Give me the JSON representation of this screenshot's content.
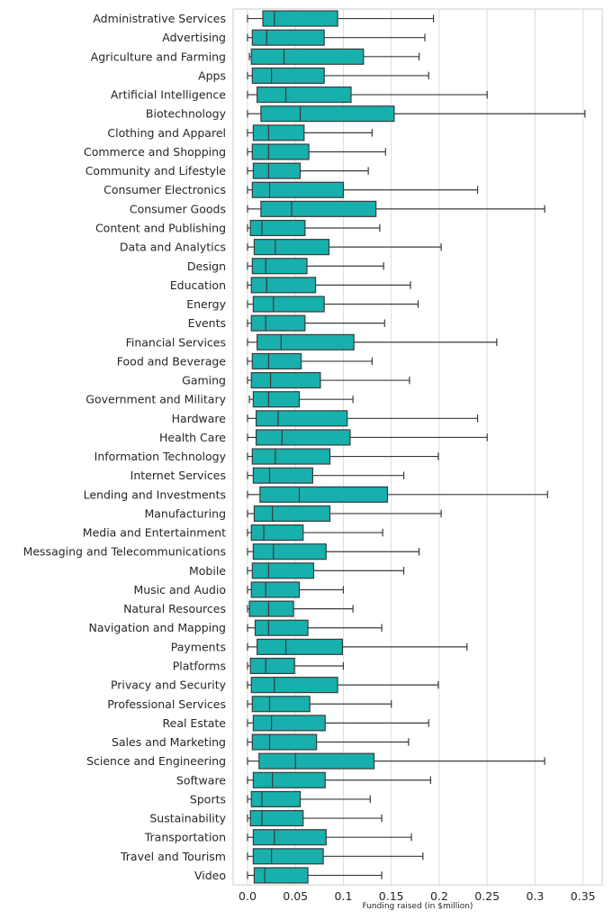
{
  "chart_data": {
    "type": "boxplot",
    "orientation": "horizontal",
    "xlabel": "Funding raised (in $million)",
    "xlim": [
      -0.015,
      0.37
    ],
    "xticks": [
      0.0,
      0.05,
      0.1,
      0.15,
      0.2,
      0.25,
      0.3,
      0.35
    ],
    "xtick_labels": [
      "0.0",
      "0.05",
      "0.1",
      "0.15",
      "0.2",
      "0.25",
      "0.3",
      "0.35"
    ],
    "grid": "vertical",
    "box_color": "#17b0ad",
    "edge_color": "#3a3a3a",
    "categories": [
      {
        "name": "Administrative Services",
        "whislo": 0.0,
        "q1": 0.016,
        "med": 0.028,
        "q3": 0.094,
        "whishi": 0.194
      },
      {
        "name": "Advertising",
        "whislo": 0.0,
        "q1": 0.005,
        "med": 0.02,
        "q3": 0.08,
        "whishi": 0.185
      },
      {
        "name": "Agriculture and Farming",
        "whislo": 0.002,
        "q1": 0.004,
        "med": 0.038,
        "q3": 0.121,
        "whishi": 0.179
      },
      {
        "name": "Apps",
        "whislo": 0.0,
        "q1": 0.005,
        "med": 0.025,
        "q3": 0.08,
        "whishi": 0.189
      },
      {
        "name": "Artificial Intelligence",
        "whislo": 0.0,
        "q1": 0.01,
        "med": 0.04,
        "q3": 0.108,
        "whishi": 0.25
      },
      {
        "name": "Biotechnology",
        "whislo": 0.0,
        "q1": 0.014,
        "med": 0.055,
        "q3": 0.153,
        "whishi": 0.352
      },
      {
        "name": "Clothing and Apparel",
        "whislo": 0.0,
        "q1": 0.006,
        "med": 0.022,
        "q3": 0.059,
        "whishi": 0.13
      },
      {
        "name": "Commerce and Shopping",
        "whislo": 0.0,
        "q1": 0.005,
        "med": 0.022,
        "q3": 0.064,
        "whishi": 0.144
      },
      {
        "name": "Community and Lifestyle",
        "whislo": 0.0,
        "q1": 0.006,
        "med": 0.022,
        "q3": 0.055,
        "whishi": 0.126
      },
      {
        "name": "Consumer Electronics",
        "whislo": 0.0,
        "q1": 0.005,
        "med": 0.023,
        "q3": 0.1,
        "whishi": 0.24
      },
      {
        "name": "Consumer Goods",
        "whislo": 0.0,
        "q1": 0.014,
        "med": 0.046,
        "q3": 0.134,
        "whishi": 0.31
      },
      {
        "name": "Content and Publishing",
        "whislo": 0.0,
        "q1": 0.003,
        "med": 0.015,
        "q3": 0.06,
        "whishi": 0.138
      },
      {
        "name": "Data and Analytics",
        "whislo": 0.0,
        "q1": 0.007,
        "med": 0.029,
        "q3": 0.085,
        "whishi": 0.202
      },
      {
        "name": "Design",
        "whislo": 0.0,
        "q1": 0.005,
        "med": 0.019,
        "q3": 0.062,
        "whishi": 0.142
      },
      {
        "name": "Education",
        "whislo": 0.0,
        "q1": 0.004,
        "med": 0.02,
        "q3": 0.071,
        "whishi": 0.17
      },
      {
        "name": "Energy",
        "whislo": 0.0,
        "q1": 0.006,
        "med": 0.027,
        "q3": 0.08,
        "whishi": 0.178
      },
      {
        "name": "Events",
        "whislo": 0.0,
        "q1": 0.004,
        "med": 0.019,
        "q3": 0.06,
        "whishi": 0.143
      },
      {
        "name": "Financial Services",
        "whislo": 0.0,
        "q1": 0.01,
        "med": 0.035,
        "q3": 0.111,
        "whishi": 0.26
      },
      {
        "name": "Food and Beverage",
        "whislo": 0.0,
        "q1": 0.005,
        "med": 0.022,
        "q3": 0.056,
        "whishi": 0.13
      },
      {
        "name": "Gaming",
        "whislo": 0.0,
        "q1": 0.004,
        "med": 0.024,
        "q3": 0.076,
        "whishi": 0.169
      },
      {
        "name": "Government and Military",
        "whislo": 0.002,
        "q1": 0.006,
        "med": 0.022,
        "q3": 0.054,
        "whishi": 0.11
      },
      {
        "name": "Hardware",
        "whislo": 0.0,
        "q1": 0.009,
        "med": 0.032,
        "q3": 0.104,
        "whishi": 0.24
      },
      {
        "name": "Health Care",
        "whislo": 0.0,
        "q1": 0.009,
        "med": 0.036,
        "q3": 0.107,
        "whishi": 0.25
      },
      {
        "name": "Information Technology",
        "whislo": 0.0,
        "q1": 0.005,
        "med": 0.029,
        "q3": 0.086,
        "whishi": 0.199
      },
      {
        "name": "Internet Services",
        "whislo": 0.0,
        "q1": 0.006,
        "med": 0.023,
        "q3": 0.068,
        "whishi": 0.163
      },
      {
        "name": "Lending and Investments",
        "whislo": 0.0,
        "q1": 0.013,
        "med": 0.054,
        "q3": 0.146,
        "whishi": 0.313
      },
      {
        "name": "Manufacturing",
        "whislo": 0.0,
        "q1": 0.007,
        "med": 0.026,
        "q3": 0.086,
        "whishi": 0.202
      },
      {
        "name": "Media and Entertainment",
        "whislo": 0.0,
        "q1": 0.004,
        "med": 0.017,
        "q3": 0.058,
        "whishi": 0.141
      },
      {
        "name": "Messaging and Telecommunications",
        "whislo": 0.0,
        "q1": 0.006,
        "med": 0.027,
        "q3": 0.082,
        "whishi": 0.179
      },
      {
        "name": "Mobile",
        "whislo": 0.0,
        "q1": 0.005,
        "med": 0.022,
        "q3": 0.069,
        "whishi": 0.163
      },
      {
        "name": "Music and Audio",
        "whislo": 0.0,
        "q1": 0.004,
        "med": 0.019,
        "q3": 0.054,
        "whishi": 0.1
      },
      {
        "name": "Natural Resources",
        "whislo": 0.0,
        "q1": 0.002,
        "med": 0.022,
        "q3": 0.048,
        "whishi": 0.11
      },
      {
        "name": "Navigation and Mapping",
        "whislo": 0.0,
        "q1": 0.008,
        "med": 0.022,
        "q3": 0.063,
        "whishi": 0.14
      },
      {
        "name": "Payments",
        "whislo": 0.0,
        "q1": 0.01,
        "med": 0.04,
        "q3": 0.099,
        "whishi": 0.229
      },
      {
        "name": "Platforms",
        "whislo": 0.0,
        "q1": 0.003,
        "med": 0.019,
        "q3": 0.049,
        "whishi": 0.1
      },
      {
        "name": "Privacy and Security",
        "whislo": 0.0,
        "q1": 0.004,
        "med": 0.028,
        "q3": 0.094,
        "whishi": 0.199
      },
      {
        "name": "Professional Services",
        "whislo": 0.0,
        "q1": 0.005,
        "med": 0.023,
        "q3": 0.065,
        "whishi": 0.15
      },
      {
        "name": "Real Estate",
        "whislo": 0.0,
        "q1": 0.006,
        "med": 0.025,
        "q3": 0.081,
        "whishi": 0.189
      },
      {
        "name": "Sales and Marketing",
        "whislo": 0.0,
        "q1": 0.005,
        "med": 0.023,
        "q3": 0.072,
        "whishi": 0.168
      },
      {
        "name": "Science and Engineering",
        "whislo": 0.0,
        "q1": 0.012,
        "med": 0.05,
        "q3": 0.132,
        "whishi": 0.31
      },
      {
        "name": "Software",
        "whislo": 0.0,
        "q1": 0.006,
        "med": 0.026,
        "q3": 0.081,
        "whishi": 0.191
      },
      {
        "name": "Sports",
        "whislo": 0.0,
        "q1": 0.004,
        "med": 0.015,
        "q3": 0.055,
        "whishi": 0.128
      },
      {
        "name": "Sustainability",
        "whislo": 0.0,
        "q1": 0.003,
        "med": 0.015,
        "q3": 0.058,
        "whishi": 0.14
      },
      {
        "name": "Transportation",
        "whislo": 0.0,
        "q1": 0.006,
        "med": 0.028,
        "q3": 0.082,
        "whishi": 0.171
      },
      {
        "name": "Travel and Tourism",
        "whislo": 0.0,
        "q1": 0.006,
        "med": 0.025,
        "q3": 0.079,
        "whishi": 0.183
      },
      {
        "name": "Video",
        "whislo": 0.0,
        "q1": 0.007,
        "med": 0.018,
        "q3": 0.063,
        "whishi": 0.14
      }
    ]
  }
}
